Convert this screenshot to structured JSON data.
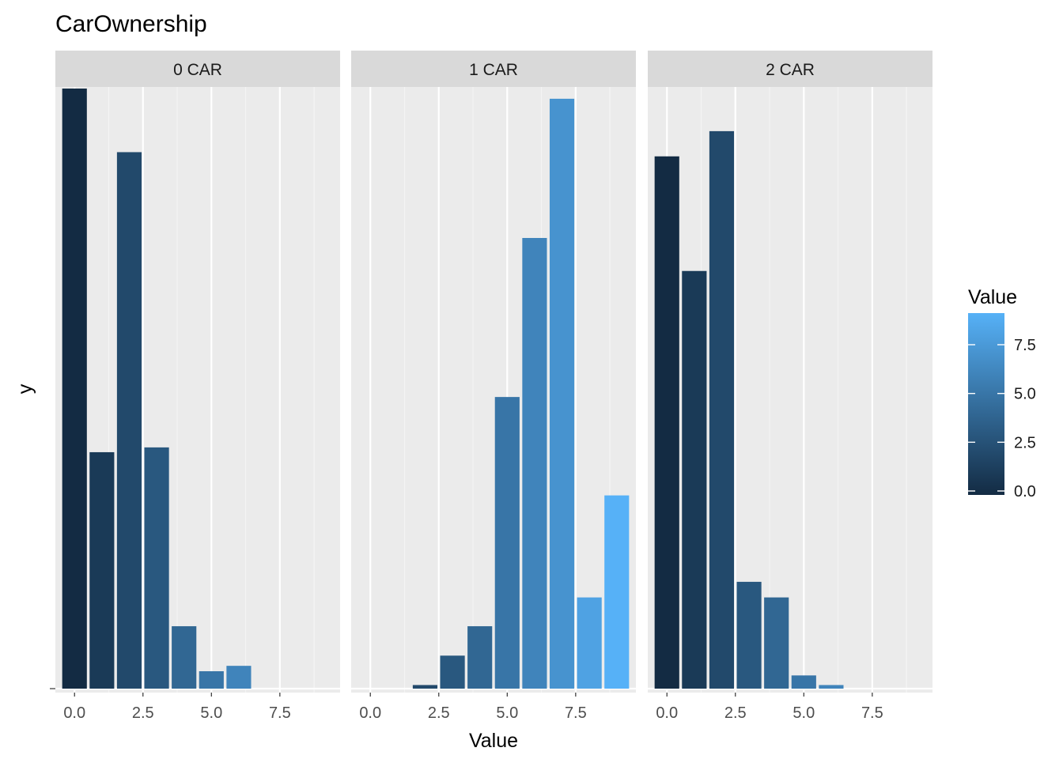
{
  "chart_data": {
    "type": "bar",
    "title": "CarOwnership",
    "xlabel": "Value",
    "ylabel": "y",
    "xlim": [
      -0.7,
      9.7
    ],
    "ylim": [
      0,
      1.0
    ],
    "x_ticks": [
      "0.0",
      "2.5",
      "5.0",
      "7.5"
    ],
    "x_tick_values": [
      0,
      2.5,
      5,
      7.5
    ],
    "y_ticks": [
      ""
    ],
    "grid": true,
    "legend": {
      "title": "Value",
      "placement": "right",
      "type": "colorbar",
      "range": [
        0,
        9
      ],
      "ticks": [
        "0.0",
        "2.5",
        "5.0",
        "7.5"
      ],
      "tick_values": [
        0,
        2.5,
        5,
        7.5
      ],
      "color_low": "#132B43",
      "color_high": "#56B1F7"
    },
    "panels": [
      {
        "label": "0 CAR",
        "x": [
          0,
          1,
          2,
          3,
          4,
          5,
          6
        ],
        "values": [
          1.0,
          0.394,
          0.894,
          0.402,
          0.104,
          0.029,
          0.038
        ]
      },
      {
        "label": "1 CAR",
        "x": [
          2,
          3,
          4,
          5,
          6,
          7,
          8,
          9
        ],
        "values": [
          0.006,
          0.055,
          0.104,
          0.486,
          0.751,
          0.983,
          0.152,
          0.322
        ]
      },
      {
        "label": "2 CAR",
        "x": [
          0,
          1,
          2,
          3,
          4,
          5,
          6
        ],
        "values": [
          0.887,
          0.696,
          0.929,
          0.178,
          0.152,
          0.022,
          0.006
        ]
      }
    ]
  }
}
